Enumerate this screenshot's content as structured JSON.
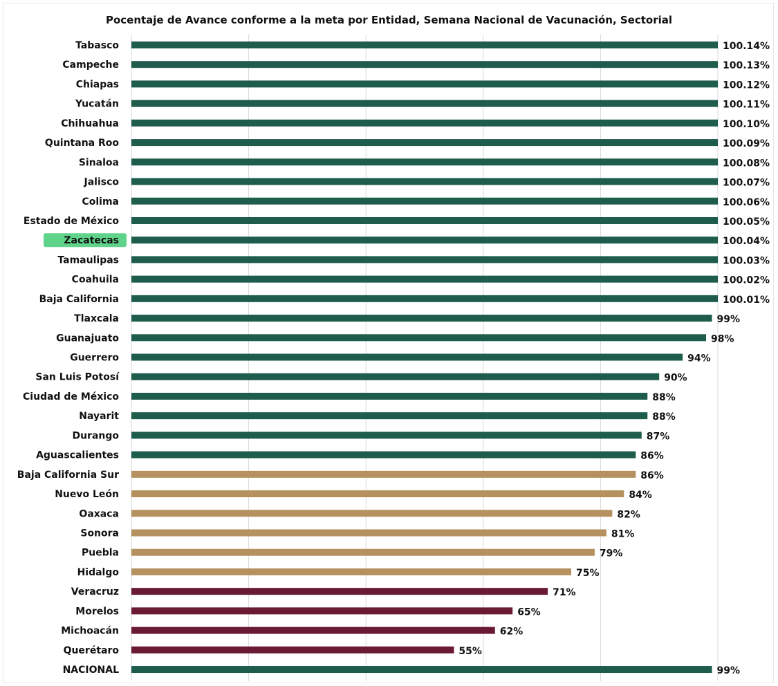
{
  "chart_data": {
    "type": "bar",
    "orientation": "horizontal",
    "title": "Pocentaje de Avance conforme a la meta por Entidad, Semana Nacional de Vacunación, Sectorial",
    "xlim": [
      0,
      100
    ],
    "grid": true,
    "legend": "none",
    "highlighted_category": "Zacatecas",
    "highlight_color": "#5fd38a",
    "colors": {
      "high": "#1e5c4c",
      "medium": "#b5915f",
      "low": "#6b1a33"
    },
    "categories": [
      "Tabasco",
      "Campeche",
      "Chiapas",
      "Yucatán",
      "Chihuahua",
      "Quintana Roo",
      "Sinaloa",
      "Jalisco",
      "Colima",
      "Estado de México",
      "Zacatecas",
      "Tamaulipas",
      "Coahuila",
      "Baja California",
      "Tlaxcala",
      "Guanajuato",
      "Guerrero",
      "San Luis Potosí",
      "Ciudad de México",
      "Nayarit",
      "Durango",
      "Aguascalientes",
      "Baja California Sur",
      "Nuevo León",
      "Oaxaca",
      "Sonora",
      "Puebla",
      "Hidalgo",
      "Veracruz",
      "Morelos",
      "Michoacán",
      "Querétaro",
      "NACIONAL"
    ],
    "values": [
      100.14,
      100.13,
      100.12,
      100.11,
      100.1,
      100.09,
      100.08,
      100.07,
      100.06,
      100.05,
      100.04,
      100.03,
      100.02,
      100.01,
      99,
      98,
      94,
      90,
      88,
      88,
      87,
      86,
      86,
      84,
      82,
      81,
      79,
      75,
      71,
      65,
      62,
      55,
      99
    ],
    "value_labels": [
      "100.14%",
      "100.13%",
      "100.12%",
      "100.11%",
      "100.10%",
      "100.09%",
      "100.08%",
      "100.07%",
      "100.06%",
      "100.05%",
      "100.04%",
      "100.03%",
      "100.02%",
      "100.01%",
      "99%",
      "98%",
      "94%",
      "90%",
      "88%",
      "88%",
      "87%",
      "86%",
      "86%",
      "84%",
      "82%",
      "81%",
      "79%",
      "75%",
      "71%",
      "65%",
      "62%",
      "55%",
      "99%"
    ],
    "color_groups": [
      "high",
      "high",
      "high",
      "high",
      "high",
      "high",
      "high",
      "high",
      "high",
      "high",
      "high",
      "high",
      "high",
      "high",
      "high",
      "high",
      "high",
      "high",
      "high",
      "high",
      "high",
      "high",
      "medium",
      "medium",
      "medium",
      "medium",
      "medium",
      "medium",
      "low",
      "low",
      "low",
      "low",
      "high"
    ]
  }
}
